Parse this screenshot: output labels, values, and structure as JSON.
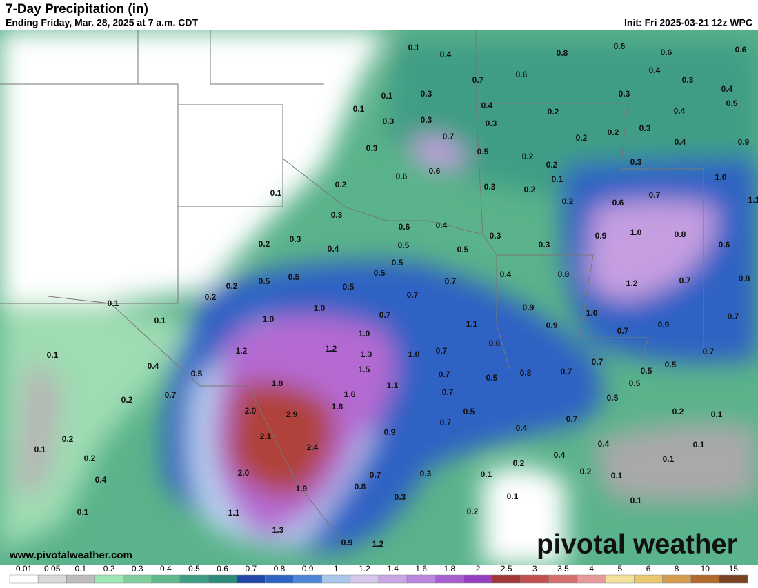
{
  "header": {
    "title": "7-Day Precipitation (in)",
    "subtitle": "Ending Friday, Mar. 28, 2025 at 7 a.m. CDT",
    "init": "Init: Fri 2025-03-21 12z WPC"
  },
  "map": {
    "labels": [
      "0.1",
      "0.4",
      "0.8",
      "0.6",
      "0.6",
      "0.6",
      "0.6",
      "0.7",
      "0.4",
      "0.3",
      "0.4",
      "0.1",
      "0.3",
      "0.3",
      "0.4",
      "0.2",
      "0.4",
      "0.5",
      "0.1",
      "0.3",
      "0.3",
      "0.3",
      "0.2",
      "0.3",
      "0.7",
      "0.2",
      "0.4",
      "0.9",
      "0.3",
      "0.5",
      "0.2",
      "0.3",
      "0.6",
      "0.2",
      "0.6",
      "0.1",
      "1.0",
      "0.2",
      "0.3",
      "0.2",
      "0.1",
      "0.7",
      "1.1",
      "0.2",
      "0.6",
      "0.3",
      "0.6",
      "0.4",
      "1.0",
      "0.3",
      "0.9",
      "0.8",
      "0.2",
      "0.3",
      "0.5",
      "0.4",
      "0.5",
      "0.3",
      "0.6",
      "0.5",
      "0.5",
      "0.5",
      "0.5",
      "0.4",
      "0.8",
      "0.2",
      "0.5",
      "0.7",
      "1.2",
      "0.7",
      "0.8",
      "0.2",
      "0.1",
      "0.7",
      "1.0",
      "0.9",
      "0.1",
      "1.0",
      "0.7",
      "1.0",
      "1.1",
      "0.9",
      "0.9",
      "0.7",
      "1.0",
      "0.7",
      "0.1",
      "1.2",
      "1.2",
      "1.3",
      "1.0",
      "0.7",
      "0.6",
      "0.4",
      "0.5",
      "1.5",
      "0.7",
      "0.5",
      "0.5",
      "0.7",
      "1.8",
      "1.1",
      "0.7",
      "0.8",
      "0.7",
      "0.5",
      "0.5",
      "0.7",
      "1.6",
      "0.7",
      "0.2",
      "1.8",
      "2.0",
      "2.9",
      "0.5",
      "0.2",
      "0.1",
      "0.5",
      "0.7",
      "0.7",
      "0.2",
      "2.1",
      "0.9",
      "0.4",
      "0.4",
      "0.1",
      "2.4",
      "0.2",
      "0.4",
      "0.2",
      "0.1",
      "0.1",
      "2.0",
      "0.7",
      "0.3",
      "0.1",
      "0.2",
      "0.1",
      "0.4",
      "1.9",
      "0.8",
      "0.3",
      "0.1",
      "0.1",
      "0.1",
      "1.1",
      "0.2",
      "1.3",
      "0.9",
      "1.2"
    ],
    "website": "www.pivotalweather.com",
    "logo": "pivotal weather"
  },
  "legend": {
    "labels": [
      "0.01",
      "0.05",
      "0.1",
      "0.2",
      "0.3",
      "0.4",
      "0.5",
      "0.6",
      "0.7",
      "0.8",
      "0.9",
      "1",
      "1.2",
      "1.4",
      "1.6",
      "1.8",
      "2",
      "2.5",
      "3",
      "3.5",
      "4",
      "5",
      "6",
      "8",
      "10",
      "15"
    ]
  }
}
